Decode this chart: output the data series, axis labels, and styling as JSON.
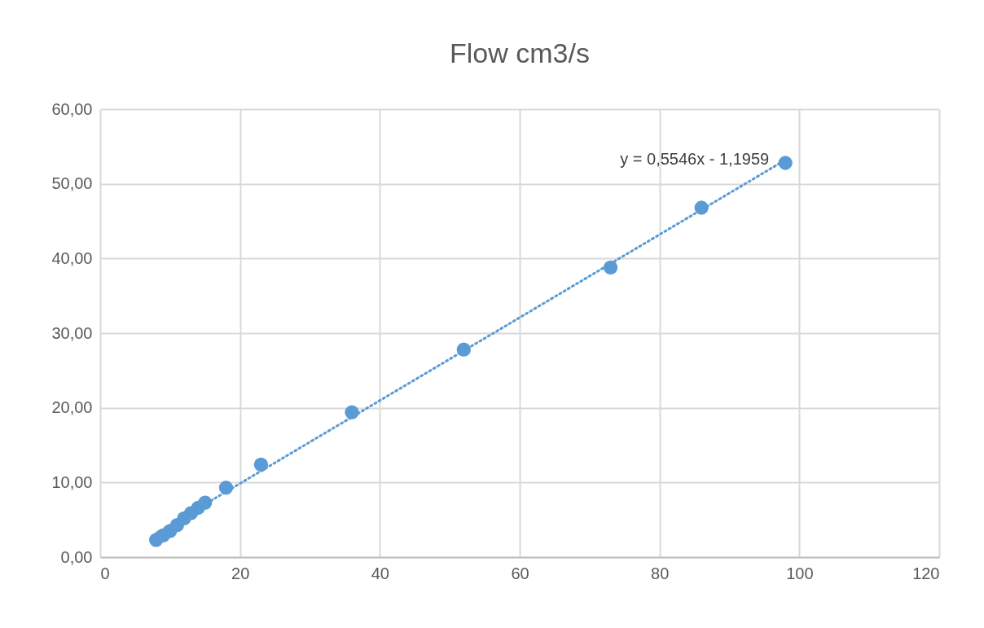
{
  "chart_data": {
    "type": "scatter",
    "title": "Flow cm3/s",
    "xlim": [
      0,
      120
    ],
    "xticks": [
      0,
      20,
      40,
      60,
      80,
      100,
      120
    ],
    "ylim": [
      0,
      60
    ],
    "yticks": [
      {
        "value": 0,
        "label": "0,00"
      },
      {
        "value": 10,
        "label": "10,00"
      },
      {
        "value": 20,
        "label": "20,00"
      },
      {
        "value": 30,
        "label": "30,00"
      },
      {
        "value": 40,
        "label": "40,00"
      },
      {
        "value": 50,
        "label": "50,00"
      },
      {
        "value": 60,
        "label": "60,00"
      }
    ],
    "grid": true,
    "marker": "circle",
    "series": [
      {
        "color": "#5b9bd5",
        "x": [
          8,
          9,
          10,
          11,
          12,
          13,
          14,
          15,
          18,
          23,
          36,
          52,
          73,
          86,
          98
        ],
        "values": [
          2.3,
          2.9,
          3.5,
          4.3,
          5.2,
          5.9,
          6.6,
          7.3,
          9.3,
          12.4,
          19.4,
          27.8,
          38.8,
          46.8,
          52.8
        ]
      },
      {
        "type": "line",
        "color": "#5b9bd5",
        "line_style": "dotted",
        "marker": "none",
        "x": [
          8,
          98
        ],
        "values": [
          3.2,
          53.2
        ]
      }
    ],
    "annotations": [
      {
        "text": "y = 0,5546x - 1,1959",
        "x": 98,
        "y": 53.2
      }
    ]
  }
}
